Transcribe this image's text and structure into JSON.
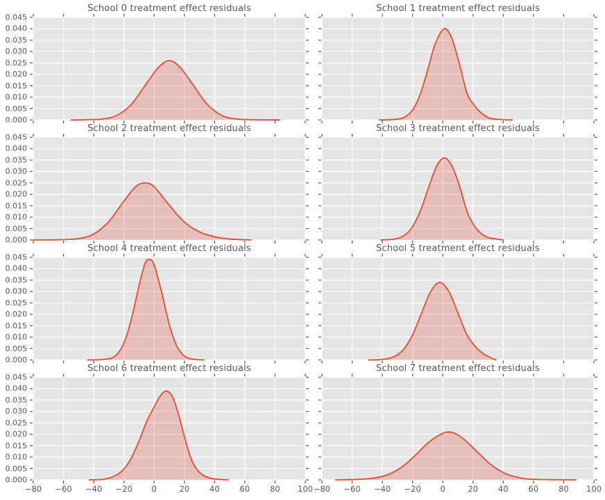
{
  "chart_data": {
    "type": "area",
    "subtype": "kde-density",
    "grid": true,
    "legend": "none",
    "panel_bg": "#e5e5e5",
    "grid_color": "#ffffff",
    "line_color": "#e24a33",
    "fill_color": "rgba(226,74,51,0.25)",
    "tick_color": "#555555",
    "text_color": "#555555",
    "xlabel": "",
    "ylabel": "",
    "xlim": [
      -80,
      100
    ],
    "ylim": [
      0,
      0.045
    ],
    "x_ticks": [
      -80,
      -60,
      -40,
      -20,
      0,
      20,
      40,
      60,
      80,
      100
    ],
    "x_tick_labels": [
      "−80",
      "−60",
      "−40",
      "−20",
      "0",
      "20",
      "40",
      "60",
      "80",
      "100"
    ],
    "y_ticks": [
      0,
      0.005,
      0.01,
      0.015,
      0.02,
      0.025,
      0.03,
      0.035,
      0.04,
      0.045
    ],
    "y_tick_labels": [
      "0.000",
      "0.005",
      "0.010",
      "0.015",
      "0.020",
      "0.025",
      "0.030",
      "0.035",
      "0.040",
      "0.045"
    ],
    "panels": [
      {
        "school": 0,
        "title": "School 0 treatment effect residuals",
        "peak": {
          "x": 10,
          "density": 0.026
        },
        "points": [
          [
            -55,
            0
          ],
          [
            -45,
            0.0001
          ],
          [
            -35,
            0.0004
          ],
          [
            -25,
            0.0019
          ],
          [
            -15,
            0.0069
          ],
          [
            -5,
            0.0161
          ],
          [
            3,
            0.0232
          ],
          [
            10,
            0.026
          ],
          [
            17,
            0.0232
          ],
          [
            25,
            0.0161
          ],
          [
            35,
            0.0069
          ],
          [
            45,
            0.0019
          ],
          [
            55,
            0.0004
          ],
          [
            65,
            0.0001
          ],
          [
            83,
            0
          ]
        ]
      },
      {
        "school": 1,
        "title": "School 1 treatment effect residuals",
        "peak": {
          "x": 1,
          "density": 0.04
        },
        "points": [
          [
            -42,
            0
          ],
          [
            -33,
            0.0002
          ],
          [
            -26,
            0.001
          ],
          [
            -20,
            0.0044
          ],
          [
            -15,
            0.0111
          ],
          [
            -10,
            0.0219
          ],
          [
            -5,
            0.0334
          ],
          [
            1,
            0.04
          ],
          [
            6,
            0.0358
          ],
          [
            11,
            0.0245
          ],
          [
            16,
            0.0118
          ],
          [
            21,
            0.0062
          ],
          [
            26,
            0.0028
          ],
          [
            31,
            0.0008
          ],
          [
            38,
            0.0002
          ],
          [
            46,
            0
          ]
        ]
      },
      {
        "school": 2,
        "title": "School 2 treatment effect residuals",
        "peak": {
          "x": -6,
          "density": 0.025
        },
        "points": [
          [
            -80,
            0
          ],
          [
            -62,
            0.0001
          ],
          [
            -50,
            0.0006
          ],
          [
            -40,
            0.0026
          ],
          [
            -30,
            0.0081
          ],
          [
            -20,
            0.0171
          ],
          [
            -12,
            0.0235
          ],
          [
            -6,
            0.025
          ],
          [
            0,
            0.0233
          ],
          [
            10,
            0.0152
          ],
          [
            20,
            0.0078
          ],
          [
            30,
            0.0035
          ],
          [
            40,
            0.0014
          ],
          [
            50,
            0.0004
          ],
          [
            64,
            0
          ]
        ]
      },
      {
        "school": 3,
        "title": "School 3 treatment effect residuals",
        "peak": {
          "x": 1,
          "density": 0.036
        },
        "points": [
          [
            -41,
            0
          ],
          [
            -33,
            0.0003
          ],
          [
            -27,
            0.0014
          ],
          [
            -21,
            0.0049
          ],
          [
            -15,
            0.0125
          ],
          [
            -9,
            0.0238
          ],
          [
            -4,
            0.0325
          ],
          [
            1,
            0.036
          ],
          [
            6,
            0.0325
          ],
          [
            11,
            0.0238
          ],
          [
            16,
            0.0125
          ],
          [
            21,
            0.006
          ],
          [
            26,
            0.0025
          ],
          [
            31,
            0.0009
          ],
          [
            40,
            0
          ]
        ]
      },
      {
        "school": 4,
        "title": "School 4 treatment effect residuals",
        "peak": {
          "x": -3,
          "density": 0.044
        },
        "points": [
          [
            -44,
            0
          ],
          [
            -34,
            0.0002
          ],
          [
            -26,
            0.0016
          ],
          [
            -20,
            0.0074
          ],
          [
            -15,
            0.0181
          ],
          [
            -10,
            0.0326
          ],
          [
            -6,
            0.0424
          ],
          [
            -3,
            0.044
          ],
          [
            0,
            0.0416
          ],
          [
            5,
            0.0296
          ],
          [
            10,
            0.0155
          ],
          [
            15,
            0.006
          ],
          [
            20,
            0.0017
          ],
          [
            26,
            0.0003
          ],
          [
            33,
            0
          ]
        ]
      },
      {
        "school": 5,
        "title": "School 5 treatment effect residuals",
        "peak": {
          "x": -2,
          "density": 0.034
        },
        "points": [
          [
            -49,
            0
          ],
          [
            -40,
            0.0002
          ],
          [
            -32,
            0.0015
          ],
          [
            -26,
            0.0046
          ],
          [
            -20,
            0.011
          ],
          [
            -14,
            0.0206
          ],
          [
            -8,
            0.03
          ],
          [
            -2,
            0.034
          ],
          [
            4,
            0.03
          ],
          [
            10,
            0.0206
          ],
          [
            16,
            0.011
          ],
          [
            22,
            0.0055
          ],
          [
            28,
            0.0022
          ],
          [
            35,
            0
          ]
        ]
      },
      {
        "school": 6,
        "title": "School 6 treatment effect residuals",
        "peak": {
          "x": 8,
          "density": 0.039
        },
        "points": [
          [
            -43,
            0
          ],
          [
            -35,
            0.0002
          ],
          [
            -28,
            0.0012
          ],
          [
            -22,
            0.0035
          ],
          [
            -16,
            0.0085
          ],
          [
            -10,
            0.017
          ],
          [
            -5,
            0.0255
          ],
          [
            0,
            0.032
          ],
          [
            4,
            0.0368
          ],
          [
            8,
            0.039
          ],
          [
            12,
            0.0365
          ],
          [
            16,
            0.029
          ],
          [
            20,
            0.019
          ],
          [
            24,
            0.01
          ],
          [
            28,
            0.0048
          ],
          [
            33,
            0.0018
          ],
          [
            39,
            0.0005
          ],
          [
            49,
            0
          ]
        ]
      },
      {
        "school": 7,
        "title": "School 7 treatment effect residuals",
        "peak": {
          "x": 3,
          "density": 0.021
        },
        "points": [
          [
            -71,
            0
          ],
          [
            -58,
            0.0002
          ],
          [
            -48,
            0.0006
          ],
          [
            -38,
            0.0019
          ],
          [
            -28,
            0.0052
          ],
          [
            -18,
            0.0109
          ],
          [
            -8,
            0.0172
          ],
          [
            3,
            0.021
          ],
          [
            12,
            0.0188
          ],
          [
            22,
            0.0128
          ],
          [
            32,
            0.0066
          ],
          [
            42,
            0.0026
          ],
          [
            52,
            0.0008
          ],
          [
            62,
            0.0002
          ],
          [
            88,
            0
          ]
        ]
      }
    ]
  }
}
